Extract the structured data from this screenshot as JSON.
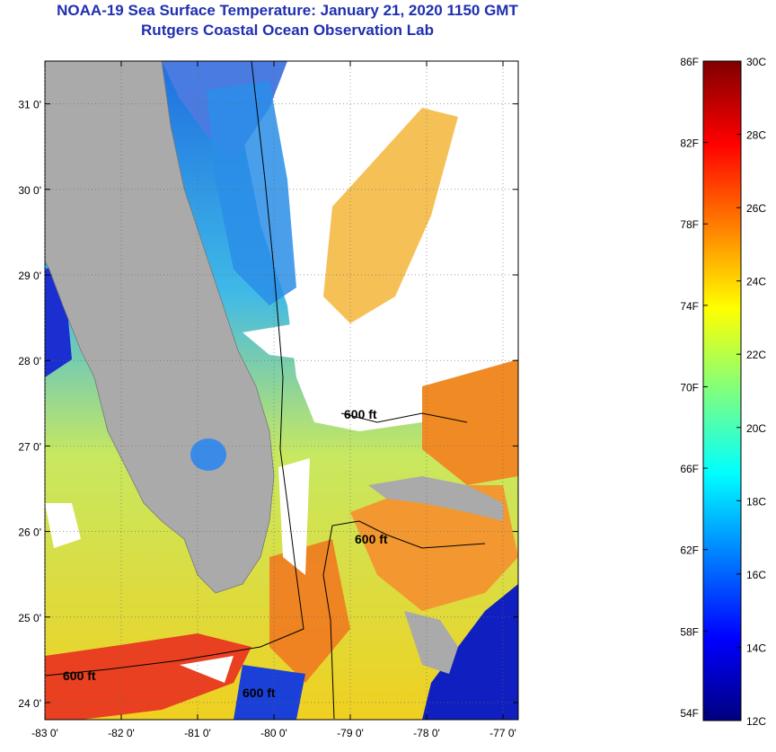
{
  "header": {
    "title": "NOAA-19 Sea Surface Temperature:  January 21, 2020 1150 GMT",
    "subtitle": "Rutgers Coastal Ocean Observation Lab"
  },
  "map": {
    "lat_labels": [
      "31 0'",
      "30 0'",
      "29 0'",
      "28 0'",
      "27 0'",
      "26 0'",
      "25 0'",
      "24 0'"
    ],
    "lon_labels": [
      "-83 0'",
      "-82 0'",
      "-81 0'",
      "-80 0'",
      "-79 0'",
      "-78 0'",
      "-77 0'"
    ],
    "lat_values": [
      31,
      30,
      29,
      28,
      27,
      26,
      25,
      24
    ],
    "lon_values": [
      -83,
      -82,
      -81,
      -80,
      -79,
      -78,
      -77
    ],
    "lat_range": [
      23.8,
      31.5
    ],
    "lon_range": [
      -83,
      -76.8
    ],
    "isobath_label": "600 ft",
    "land_color": "#aaaaaa",
    "cloud_color": "#ffffff"
  },
  "colorbar": {
    "f_labels": [
      "86F",
      "82F",
      "78F",
      "74F",
      "70F",
      "66F",
      "62F",
      "58F",
      "54F"
    ],
    "c_labels": [
      "30C",
      "28C",
      "26C",
      "24C",
      "22C",
      "20C",
      "18C",
      "16C",
      "14C",
      "12C"
    ],
    "range_c": [
      12,
      30
    ],
    "colors": [
      "#00007f",
      "#0000ff",
      "#007fff",
      "#00ffff",
      "#7fff7f",
      "#ffff00",
      "#ff7f00",
      "#ff0000",
      "#7f0000"
    ]
  }
}
